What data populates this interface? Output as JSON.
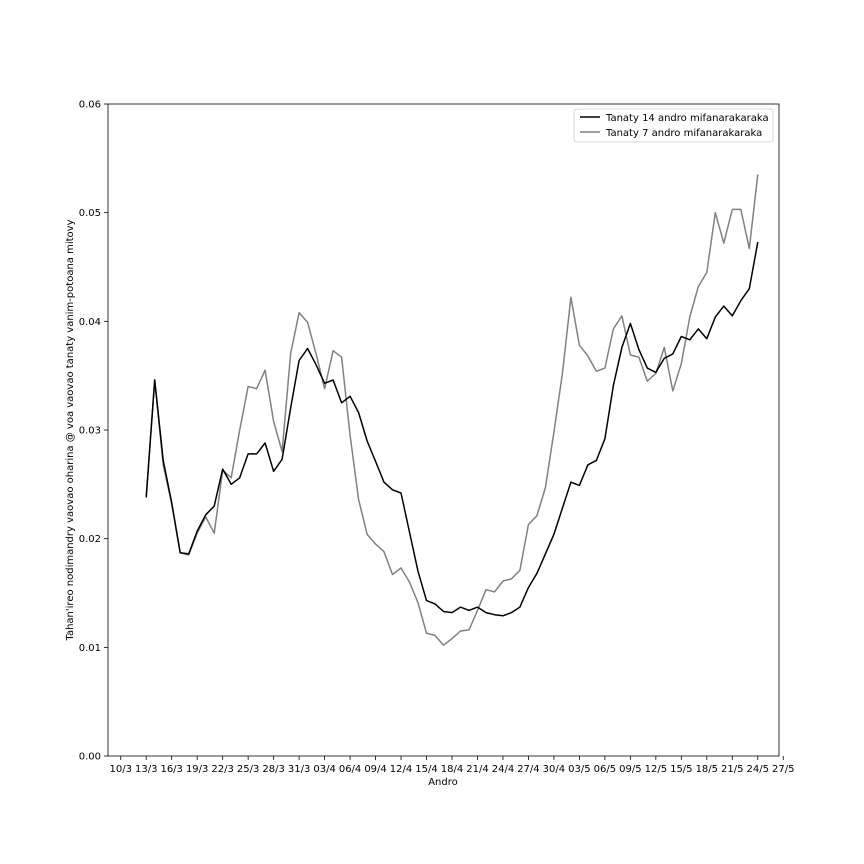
{
  "chart_data": {
    "type": "line",
    "xlabel": "Andro",
    "ylabel": "Tahan'ireo nodimandry vaovao oharina @ voa vaovao tanaty vanim-potoana mitovy",
    "x_tick_labels": [
      "10/3",
      "13/3",
      "16/3",
      "19/3",
      "22/3",
      "25/3",
      "28/3",
      "31/3",
      "03/4",
      "06/4",
      "09/4",
      "12/4",
      "15/4",
      "18/4",
      "21/4",
      "24/4",
      "27/4",
      "30/4",
      "03/5",
      "06/5",
      "09/5",
      "12/5",
      "15/5",
      "18/5",
      "21/5",
      "24/5",
      "27/5"
    ],
    "y_tick_labels": [
      "0.00",
      "0.01",
      "0.02",
      "0.03",
      "0.04",
      "0.05",
      "0.06"
    ],
    "ylim": [
      0,
      0.06
    ],
    "xlim_days": [
      -1.5,
      77.5
    ],
    "x_start_date": "10/3",
    "x_step_days": 1,
    "legend_position": "top-right",
    "grid": false,
    "series": [
      {
        "name": "Tanaty 14 andro mifanarakaraka",
        "color": "#000000",
        "x_start": 3,
        "values": [
          0.0238,
          0.0346,
          0.0272,
          0.0233,
          0.0187,
          0.0186,
          0.0207,
          0.0222,
          0.023,
          0.0264,
          0.025,
          0.0256,
          0.0278,
          0.0278,
          0.0288,
          0.0262,
          0.0273,
          0.032,
          0.0364,
          0.0375,
          0.036,
          0.0343,
          0.0346,
          0.0325,
          0.0331,
          0.0316,
          0.029,
          0.0271,
          0.0252,
          0.0245,
          0.0242,
          0.0206,
          0.017,
          0.0143,
          0.014,
          0.0133,
          0.0132,
          0.0137,
          0.0134,
          0.0137,
          0.0132,
          0.013,
          0.0129,
          0.0132,
          0.0137,
          0.0155,
          0.0168,
          0.0186,
          0.0204,
          0.0228,
          0.0252,
          0.0249,
          0.0268,
          0.0272,
          0.0292,
          0.0341,
          0.0376,
          0.0398,
          0.0374,
          0.0357,
          0.0353,
          0.0366,
          0.037,
          0.0386,
          0.0383,
          0.0393,
          0.0384,
          0.0404,
          0.0414,
          0.0405,
          0.0419,
          0.043,
          0.0473
        ]
      },
      {
        "name": "Tanaty 7 andro mifanarakaraka",
        "color": "#808080",
        "x_start": 3,
        "values": [
          0.0238,
          0.0346,
          0.0268,
          0.0232,
          0.0187,
          0.0185,
          0.0205,
          0.022,
          0.0205,
          0.0263,
          0.0256,
          0.03,
          0.034,
          0.0338,
          0.0355,
          0.0308,
          0.028,
          0.037,
          0.0408,
          0.0399,
          0.037,
          0.0338,
          0.0373,
          0.0367,
          0.0295,
          0.0236,
          0.0204,
          0.0195,
          0.0188,
          0.0167,
          0.0173,
          0.016,
          0.0141,
          0.0113,
          0.0111,
          0.0102,
          0.0108,
          0.0115,
          0.0116,
          0.0134,
          0.0153,
          0.0151,
          0.0161,
          0.0163,
          0.0171,
          0.0213,
          0.0221,
          0.0247,
          0.0298,
          0.0352,
          0.0422,
          0.0378,
          0.0368,
          0.0354,
          0.0357,
          0.0393,
          0.0405,
          0.0369,
          0.0367,
          0.0345,
          0.0352,
          0.0376,
          0.0336,
          0.0361,
          0.0404,
          0.0432,
          0.0445,
          0.05,
          0.0472,
          0.0503,
          0.0503,
          0.0467,
          0.0535
        ]
      }
    ]
  }
}
